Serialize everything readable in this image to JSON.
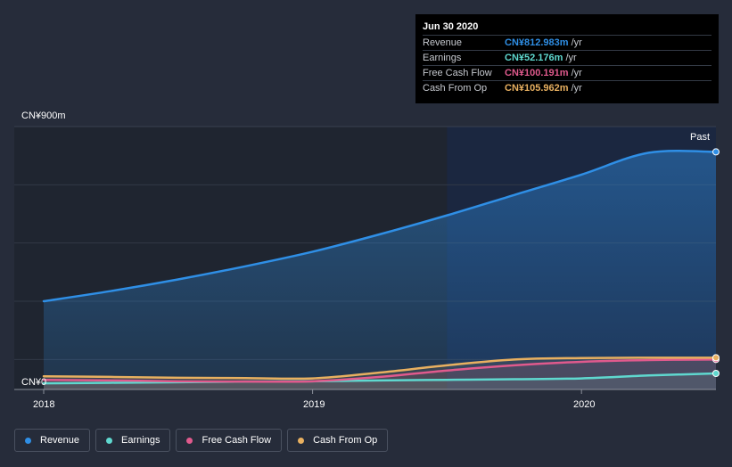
{
  "tooltip": {
    "date": "Jun 30 2020",
    "rows": [
      {
        "label": "Revenue",
        "value": "CN¥812.983m",
        "unit": "/yr",
        "color": "#2f8fe6"
      },
      {
        "label": "Earnings",
        "value": "CN¥52.176m",
        "unit": "/yr",
        "color": "#5fd8cf"
      },
      {
        "label": "Free Cash Flow",
        "value": "CN¥100.191m",
        "unit": "/yr",
        "color": "#e05a8d"
      },
      {
        "label": "Cash From Op",
        "value": "CN¥105.962m",
        "unit": "/yr",
        "color": "#e8b060"
      }
    ]
  },
  "legend": [
    {
      "label": "Revenue",
      "color": "#2f8fe6"
    },
    {
      "label": "Earnings",
      "color": "#5fd8cf"
    },
    {
      "label": "Free Cash Flow",
      "color": "#e05a8d"
    },
    {
      "label": "Cash From Op",
      "color": "#e8b060"
    }
  ],
  "chart_data": {
    "type": "line",
    "title": "",
    "y_max_label": "CN¥900m",
    "y_min_label": "CN¥0",
    "past_label": "Past",
    "ylim": [
      0,
      900
    ],
    "x_ticks": [
      "2018",
      "2019",
      "2020"
    ],
    "xlim": [
      2018.0,
      2020.5
    ],
    "highlight_start": 2019.5,
    "series": [
      {
        "name": "Revenue",
        "color": "#2f8fe6",
        "fill": true,
        "points": [
          [
            2018.0,
            300
          ],
          [
            2018.25,
            335
          ],
          [
            2018.5,
            375
          ],
          [
            2018.75,
            420
          ],
          [
            2019.0,
            470
          ],
          [
            2019.25,
            530
          ],
          [
            2019.5,
            595
          ],
          [
            2019.75,
            665
          ],
          [
            2020.0,
            735
          ],
          [
            2020.25,
            810
          ],
          [
            2020.5,
            813
          ]
        ]
      },
      {
        "name": "Earnings",
        "color": "#5fd8cf",
        "fill": false,
        "points": [
          [
            2018.0,
            18
          ],
          [
            2018.25,
            20
          ],
          [
            2018.5,
            22
          ],
          [
            2018.75,
            24
          ],
          [
            2019.0,
            25
          ],
          [
            2019.25,
            28
          ],
          [
            2019.5,
            30
          ],
          [
            2019.75,
            32
          ],
          [
            2020.0,
            35
          ],
          [
            2020.25,
            45
          ],
          [
            2020.5,
            52
          ]
        ]
      },
      {
        "name": "Free Cash Flow",
        "color": "#e05a8d",
        "fill": false,
        "points": [
          [
            2018.0,
            30
          ],
          [
            2018.25,
            28
          ],
          [
            2018.5,
            25
          ],
          [
            2018.75,
            24
          ],
          [
            2019.0,
            25
          ],
          [
            2019.25,
            40
          ],
          [
            2019.5,
            62
          ],
          [
            2019.75,
            80
          ],
          [
            2020.0,
            92
          ],
          [
            2020.25,
            98
          ],
          [
            2020.5,
            100
          ]
        ]
      },
      {
        "name": "Cash From Op",
        "color": "#e8b060",
        "fill": false,
        "points": [
          [
            2018.0,
            42
          ],
          [
            2018.25,
            40
          ],
          [
            2018.5,
            37
          ],
          [
            2018.75,
            36
          ],
          [
            2019.0,
            35
          ],
          [
            2019.25,
            55
          ],
          [
            2019.5,
            80
          ],
          [
            2019.75,
            100
          ],
          [
            2020.0,
            105
          ],
          [
            2020.25,
            106
          ],
          [
            2020.5,
            106
          ]
        ]
      }
    ]
  }
}
